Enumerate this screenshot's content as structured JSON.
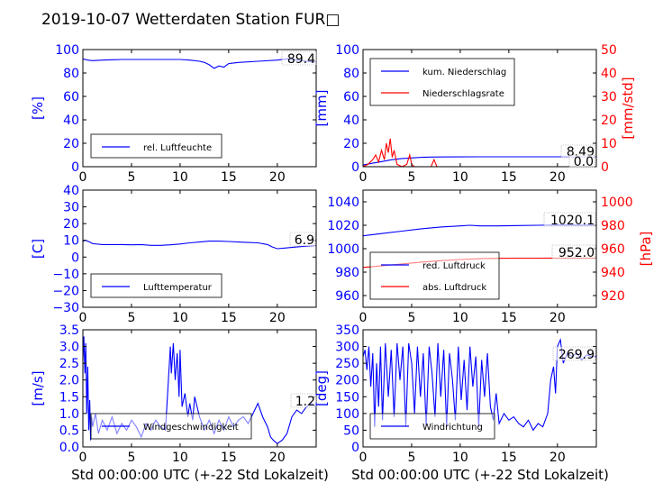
{
  "title": "2019-10-07 Wetterdaten Station FUR□",
  "x_axis_label": "Std 00:00:00 UTC (+-22 Std Lokalzeit)",
  "colors": {
    "left_axis": "#0000ff",
    "right_axis": "#ff0000",
    "series_blue": "#0000ff",
    "series_red": "#ff0000"
  },
  "chart_data": [
    {
      "id": "humidity",
      "type": "line",
      "ylabel": "[%]",
      "xlim": [
        0,
        24
      ],
      "ylim": [
        0,
        100
      ],
      "xticks": [
        "0",
        "5",
        "10",
        "15",
        "20"
      ],
      "yticks": [
        "0",
        "20",
        "40",
        "60",
        "80",
        "100"
      ],
      "legend_placement": "bottom-left",
      "annotations": [
        "89.4"
      ],
      "series": [
        {
          "name": "rel. Luftfeuchte",
          "axis": "left",
          "color": "#0000ff",
          "x": [
            0,
            0.5,
            1,
            2,
            4,
            6,
            8,
            10,
            11,
            12,
            12.5,
            13,
            13.5,
            14,
            14.5,
            15,
            16,
            18,
            20,
            21,
            22,
            23,
            24
          ],
          "y": [
            92,
            91,
            90.5,
            91,
            91.5,
            91.5,
            91.5,
            91.5,
            91,
            90,
            89,
            87,
            84,
            86,
            85,
            88,
            89,
            90,
            91,
            92,
            91,
            90,
            89.4
          ]
        }
      ]
    },
    {
      "id": "precip",
      "type": "line",
      "ylabel": "[mm]",
      "y2label": "[mm/std]",
      "xlim": [
        0,
        24
      ],
      "ylim": [
        0,
        100
      ],
      "y2lim": [
        0,
        50
      ],
      "xticks": [
        "0",
        "5",
        "10",
        "15",
        "20"
      ],
      "yticks": [
        "0",
        "20",
        "40",
        "60",
        "80",
        "100"
      ],
      "y2ticks": [
        "0",
        "10",
        "20",
        "30",
        "40",
        "50"
      ],
      "legend_placement": "top-left",
      "annotations": [
        "8.49",
        "0.0"
      ],
      "series": [
        {
          "name": "kum. Niederschlag",
          "axis": "left",
          "color": "#0000ff",
          "x": [
            0,
            1,
            2,
            3,
            4,
            5,
            6,
            7,
            8,
            10,
            12,
            16,
            20,
            24
          ],
          "y": [
            1.5,
            3,
            4.5,
            6,
            7,
            7.5,
            8,
            8.2,
            8.3,
            8.4,
            8.45,
            8.49,
            8.49,
            8.49
          ]
        },
        {
          "name": "Niederschlagsrate",
          "axis": "right",
          "color": "#ff0000",
          "x": [
            0,
            0.5,
            1,
            1.3,
            1.6,
            1.9,
            2.2,
            2.4,
            2.6,
            2.8,
            3.0,
            3.2,
            3.5,
            4.0,
            4.5,
            4.8,
            5.0,
            5.3,
            6,
            7,
            7.3,
            7.6,
            8,
            10,
            24
          ],
          "y": [
            0,
            1,
            3,
            5,
            2,
            7,
            3,
            10,
            6,
            12,
            4,
            7,
            1,
            0,
            1,
            5,
            1,
            0,
            0,
            0,
            3,
            0,
            0,
            0,
            0
          ]
        }
      ]
    },
    {
      "id": "temperature",
      "type": "line",
      "ylabel": "[C]",
      "xlim": [
        0,
        24
      ],
      "ylim": [
        -30,
        40
      ],
      "xticks": [
        "0",
        "5",
        "10",
        "15",
        "20"
      ],
      "yticks": [
        "−30",
        "−20",
        "−10",
        "0",
        "10",
        "20",
        "30",
        "40"
      ],
      "yticks_values": [
        -30,
        -20,
        -10,
        0,
        10,
        20,
        30,
        40
      ],
      "legend_placement": "bottom-left",
      "annotations": [
        "6.9"
      ],
      "series": [
        {
          "name": "Lufttemperatur",
          "axis": "left",
          "color": "#0000ff",
          "x": [
            0,
            0.3,
            0.7,
            1,
            2,
            3,
            4,
            5,
            6,
            7,
            8,
            9,
            10,
            11,
            12,
            13,
            14,
            15,
            16,
            17,
            18,
            19,
            19.5,
            20,
            21,
            22,
            23,
            24
          ],
          "y": [
            9.5,
            10,
            9,
            8,
            7.5,
            7.5,
            7.5,
            7.3,
            7.5,
            7,
            7,
            7.3,
            7.8,
            8.5,
            9,
            9.5,
            9.5,
            9.3,
            9,
            8.7,
            8.5,
            7.5,
            6,
            5,
            5.5,
            6,
            6.5,
            6.9
          ]
        }
      ]
    },
    {
      "id": "pressure",
      "type": "line",
      "ylabel": "[hPa]",
      "xlim": [
        0,
        24
      ],
      "ylim": [
        950,
        1050
      ],
      "y2lim": [
        910,
        1010
      ],
      "xticks": [
        "0",
        "5",
        "10",
        "15",
        "20"
      ],
      "yticks": [
        "960",
        "980",
        "1000",
        "1020",
        "1040"
      ],
      "yticks_values": [
        960,
        980,
        1000,
        1020,
        1040
      ],
      "y2ticks": [
        "920",
        "940",
        "960",
        "980",
        "1000"
      ],
      "y2ticks_values": [
        920,
        940,
        960,
        980,
        1000
      ],
      "legend_placement": "bottom-left",
      "annotations": [
        "1020.1",
        "952.0"
      ],
      "series": [
        {
          "name": "red. Luftdruck",
          "axis": "left",
          "color": "#0000ff",
          "x": [
            0,
            2,
            4,
            6,
            8,
            10,
            11,
            12,
            14,
            16,
            18,
            20,
            22,
            24
          ],
          "y": [
            1011,
            1013,
            1015,
            1017,
            1018.5,
            1019.5,
            1020,
            1019.5,
            1019.5,
            1019.8,
            1020,
            1020.2,
            1020.1,
            1020.1
          ]
        },
        {
          "name": "abs. Luftdruck",
          "axis": "right",
          "color": "#ff0000",
          "x": [
            0,
            2,
            4,
            6,
            8,
            10,
            12,
            14,
            16,
            18,
            20,
            22,
            24
          ],
          "y": [
            944,
            945.5,
            947,
            948.5,
            949.8,
            950.8,
            951.5,
            951.8,
            951.9,
            951.9,
            952,
            952,
            952
          ]
        }
      ]
    },
    {
      "id": "windspeed",
      "type": "line",
      "ylabel": "[m/s]",
      "xlim": [
        0,
        24
      ],
      "ylim": [
        0,
        3.5
      ],
      "xticks": [
        "0",
        "5",
        "10",
        "15",
        "20"
      ],
      "yticks": [
        "0.0",
        "0.5",
        "1.0",
        "1.5",
        "2.0",
        "2.5",
        "3.0",
        "3.5"
      ],
      "legend_placement": "bottom-center",
      "annotations": [
        "1.2"
      ],
      "series": [
        {
          "name": "Windgeschwindigkeit",
          "axis": "left",
          "color": "#0000ff",
          "x": [
            0,
            0.1,
            0.2,
            0.3,
            0.4,
            0.5,
            0.6,
            0.7,
            0.8,
            0.9,
            1.0,
            1.3,
            1.6,
            2.0,
            2.5,
            3.0,
            3.5,
            4.0,
            4.5,
            5.0,
            5.5,
            6.0,
            6.5,
            7.0,
            7.5,
            8.0,
            8.5,
            9.0,
            9.1,
            9.3,
            9.5,
            9.7,
            9.9,
            10.0,
            10.2,
            10.5,
            10.8,
            11.0,
            11.3,
            11.5,
            12.0,
            12.5,
            13.0,
            13.5,
            14.0,
            14.5,
            15.0,
            15.5,
            16.0,
            16.5,
            17.0,
            17.5,
            18.0,
            18.5,
            19.0,
            19.3,
            19.6,
            20.0,
            20.5,
            21.0,
            21.5,
            22.0,
            22.5,
            23.0,
            23.5,
            24.0
          ],
          "y": [
            2.6,
            3.3,
            2.2,
            3.1,
            1.0,
            2.4,
            0.5,
            1.4,
            0.2,
            0.9,
            0.6,
            1.0,
            0.4,
            0.8,
            0.5,
            0.9,
            0.4,
            0.7,
            0.5,
            0.8,
            0.6,
            0.3,
            0.7,
            0.5,
            0.8,
            0.6,
            0.5,
            3.0,
            2.2,
            3.1,
            2.0,
            2.8,
            1.5,
            2.9,
            1.2,
            1.6,
            0.9,
            1.3,
            0.8,
            1.5,
            0.9,
            0.5,
            0.8,
            0.4,
            0.8,
            0.5,
            0.9,
            0.6,
            0.8,
            0.9,
            0.7,
            1.0,
            1.3,
            0.9,
            0.6,
            0.3,
            0.2,
            0.1,
            0.2,
            0.4,
            0.9,
            1.1,
            1.0,
            1.2,
            1.3,
            1.2
          ]
        }
      ]
    },
    {
      "id": "winddir",
      "type": "line",
      "ylabel": "[deg]",
      "xlim": [
        0,
        24
      ],
      "ylim": [
        0,
        350
      ],
      "xticks": [
        "0",
        "5",
        "10",
        "15",
        "20"
      ],
      "yticks": [
        "0",
        "50",
        "100",
        "150",
        "200",
        "250",
        "300",
        "350"
      ],
      "legend_placement": "bottom-left",
      "annotations": [
        "269.9"
      ],
      "series": [
        {
          "name": "Windrichtung",
          "axis": "left",
          "color": "#0000ff",
          "x": [
            0,
            0.2,
            0.4,
            0.6,
            0.8,
            1.0,
            1.2,
            1.4,
            1.6,
            1.8,
            2.0,
            2.3,
            2.6,
            2.9,
            3.2,
            3.5,
            3.8,
            4.1,
            4.4,
            4.7,
            5.0,
            5.3,
            5.6,
            5.9,
            6.2,
            6.5,
            6.8,
            7.1,
            7.4,
            7.7,
            8.0,
            8.3,
            8.6,
            8.9,
            9.2,
            9.5,
            9.8,
            10.1,
            10.4,
            10.7,
            11.0,
            11.3,
            11.6,
            11.9,
            12.2,
            12.5,
            12.8,
            13.1,
            13.4,
            13.7,
            14.0,
            14.5,
            15.0,
            15.5,
            16.0,
            16.5,
            17.0,
            17.5,
            18.0,
            18.5,
            19.0,
            19.3,
            19.6,
            19.8,
            20.0,
            20.3,
            20.6,
            21.0,
            21.5,
            22.0,
            22.5,
            23.0,
            23.5,
            24.0
          ],
          "y": [
            270,
            290,
            230,
            300,
            180,
            280,
            60,
            250,
            120,
            300,
            80,
            310,
            150,
            290,
            90,
            310,
            200,
            300,
            60,
            310,
            250,
            100,
            300,
            150,
            280,
            60,
            300,
            220,
            90,
            310,
            150,
            290,
            60,
            280,
            200,
            80,
            300,
            140,
            260,
            110,
            300,
            180,
            270,
            60,
            260,
            150,
            280,
            120,
            80,
            160,
            70,
            100,
            80,
            90,
            70,
            60,
            80,
            50,
            70,
            60,
            100,
            200,
            240,
            160,
            300,
            320,
            250,
            280,
            270,
            280,
            260,
            275,
            270,
            270
          ]
        }
      ]
    }
  ]
}
